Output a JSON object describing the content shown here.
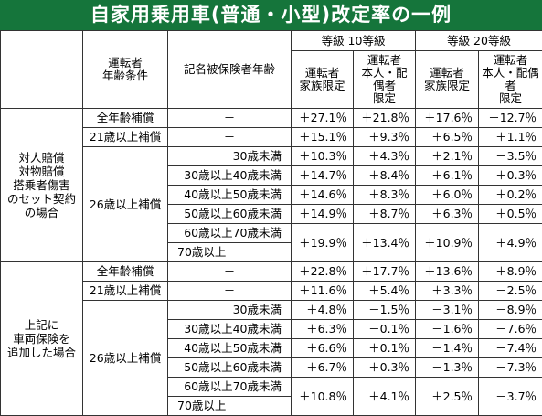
{
  "title": "自家用乗用車(普通・小型)改定率の一例",
  "header": {
    "driver_age_condition": "運転者\n年齢条件",
    "insured_age": "記名被保険者年齢",
    "grade10": "等級 10等級",
    "grade20": "等級 20等級",
    "family_limited": "運転者\n家族限定",
    "self_spouse_limited": "運転者\n本人・配偶者\n限定"
  },
  "sections": [
    {
      "label": "対人賠償\n対物賠償\n搭乗者傷害\nのセット契約\nの場合",
      "all_age": {
        "condition": "全年齢補償",
        "insured": "－",
        "values": [
          "＋27.1％",
          "＋21.8％",
          "＋17.6％",
          "＋12.7％"
        ]
      },
      "age21": {
        "condition": "21歳以上補償",
        "insured": "－",
        "values": [
          "＋15.1％",
          "＋9.3％",
          "＋6.5％",
          "＋1.1％"
        ]
      },
      "age26_label": "26歳以上補償",
      "age26": [
        {
          "insured": "30歳未満",
          "values": [
            "＋10.3％",
            "＋4.3％",
            "＋2.1％",
            "－3.5％"
          ]
        },
        {
          "insured": "30歳以上40歳未満",
          "values": [
            "＋14.7％",
            "＋8.4％",
            "＋6.1％",
            "＋0.3％"
          ]
        },
        {
          "insured": "40歳以上50歳未満",
          "values": [
            "＋14.6％",
            "＋8.3％",
            "＋6.0％",
            "＋0.2％"
          ]
        },
        {
          "insured": "50歳以上60歳未満",
          "values": [
            "＋14.9％",
            "＋8.7％",
            "＋6.3％",
            "＋0.5％"
          ]
        }
      ],
      "age26_last": {
        "insured_a": "60歳以上70歳未満",
        "insured_b": "70歳以上",
        "values": [
          "＋19.9％",
          "＋13.4％",
          "＋10.9％",
          "＋4.9％"
        ]
      }
    },
    {
      "label": "上記に\n車両保険を\n追加した場合",
      "all_age": {
        "condition": "全年齢補償",
        "insured": "－",
        "values": [
          "＋22.8％",
          "＋17.7％",
          "＋13.6％",
          "＋8.9％"
        ]
      },
      "age21": {
        "condition": "21歳以上補償",
        "insured": "－",
        "values": [
          "＋11.6％",
          "＋5.4％",
          "＋3.3％",
          "－2.5％"
        ]
      },
      "age26_label": "26歳以上補償",
      "age26": [
        {
          "insured": "30歳未満",
          "values": [
            "＋4.8％",
            "－1.5％",
            "－3.1％",
            "－8.9％"
          ]
        },
        {
          "insured": "30歳以上40歳未満",
          "values": [
            "＋6.3％",
            "－0.1％",
            "－1.6％",
            "－7.6％"
          ]
        },
        {
          "insured": "40歳以上50歳未満",
          "values": [
            "＋6.6％",
            "＋0.1％",
            "－1.4％",
            "－7.4％"
          ]
        },
        {
          "insured": "50歳以上60歳未満",
          "values": [
            "＋6.7％",
            "＋0.3％",
            "－1.3％",
            "－7.3％"
          ]
        }
      ],
      "age26_last": {
        "insured_a": "60歳以上70歳未満",
        "insured_b": "70歳以上",
        "values": [
          "＋10.8％",
          "＋4.1％",
          "＋2.5％",
          "－3.7％"
        ]
      }
    }
  ]
}
